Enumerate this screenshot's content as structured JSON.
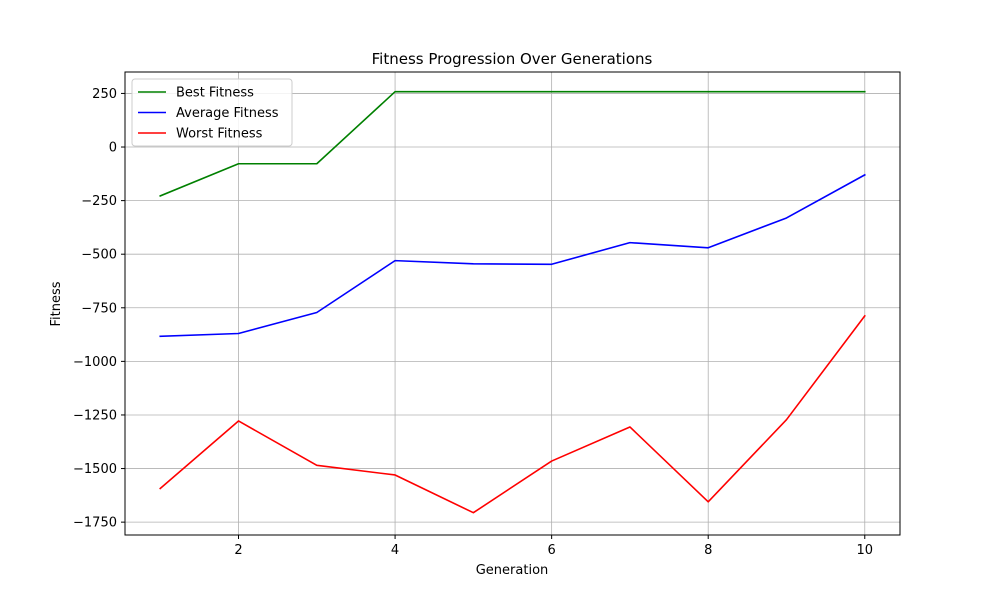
{
  "chart_data": {
    "type": "line",
    "title": "Fitness Progression Over Generations",
    "xlabel": "Generation",
    "ylabel": "Fitness",
    "x": [
      1,
      2,
      3,
      4,
      5,
      6,
      7,
      8,
      9,
      10
    ],
    "xlim": [
      0.55,
      10.45
    ],
    "ylim": [
      -1810,
      350
    ],
    "x_ticks": [
      2,
      4,
      6,
      8,
      10
    ],
    "y_ticks": [
      250,
      0,
      -250,
      -500,
      -750,
      -1000,
      -1250,
      -1500,
      -1750
    ],
    "x_tick_labels": [
      "2",
      "4",
      "6",
      "8",
      "10"
    ],
    "y_tick_labels": [
      "250",
      "0",
      "−250",
      "−500",
      "−750",
      "−1000",
      "−1250",
      "−1500",
      "−1750"
    ],
    "grid": true,
    "legend_position": "top-left",
    "series": [
      {
        "name": "Best Fitness",
        "color": "#008000",
        "values": [
          -228,
          -78,
          -78,
          258,
          258,
          258,
          258,
          258,
          258,
          258
        ]
      },
      {
        "name": "Average Fitness",
        "color": "#0000ff",
        "values": [
          -883,
          -870,
          -772,
          -530,
          -545,
          -547,
          -446,
          -470,
          -331,
          -130
        ]
      },
      {
        "name": "Worst Fitness",
        "color": "#ff0000",
        "values": [
          -1593,
          -1278,
          -1485,
          -1530,
          -1706,
          -1465,
          -1306,
          -1655,
          -1272,
          -788
        ]
      }
    ]
  }
}
